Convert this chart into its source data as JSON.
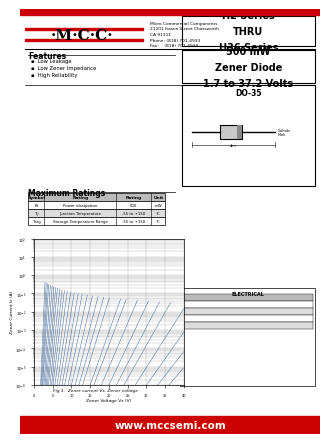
{
  "bg_color": "#ffffff",
  "title_series": "H2 Series\nTHRU\nH36 Series",
  "subtitle": "500 mW\nZener Diode\n1.7 to 37.2 Volts",
  "package": "DO-35",
  "company_name": "·M·C·C·",
  "company_info": "Micro Commercial Components\n21201 Itasca Street Chatsworth\nCA 91311\nPhone: (818) 701-4933\nFax:    (818) 701-4939",
  "features_title": "Features",
  "features": [
    "Low Leakage",
    "Low Zener Impedance",
    "High Reliability"
  ],
  "max_ratings_title": "Maximum Ratings",
  "max_ratings_headers": [
    "Symbol",
    "Rating",
    "Rating",
    "Unit"
  ],
  "max_ratings_rows": [
    [
      "Pz",
      "Power dissipation",
      "500",
      "mW"
    ],
    [
      "Tj",
      "Junction Temperature",
      "-55 to +150",
      "°C"
    ],
    [
      "Tstg",
      "Storage Temperature Range",
      "-55 to +150",
      "°C"
    ]
  ],
  "graph_xlabel": "Zener Voltage Vz (V)",
  "graph_ylabel": "Zener Current Iz (A)",
  "graph_caption": "Fig 1.  Zener current Vs. Zener voltage",
  "website": "www.mccsemi.com",
  "red_color": "#cc0000",
  "table_header_bg": "#bbbbbb",
  "table_row_bg1": "#ffffff",
  "table_row_bg2": "#dddddd"
}
